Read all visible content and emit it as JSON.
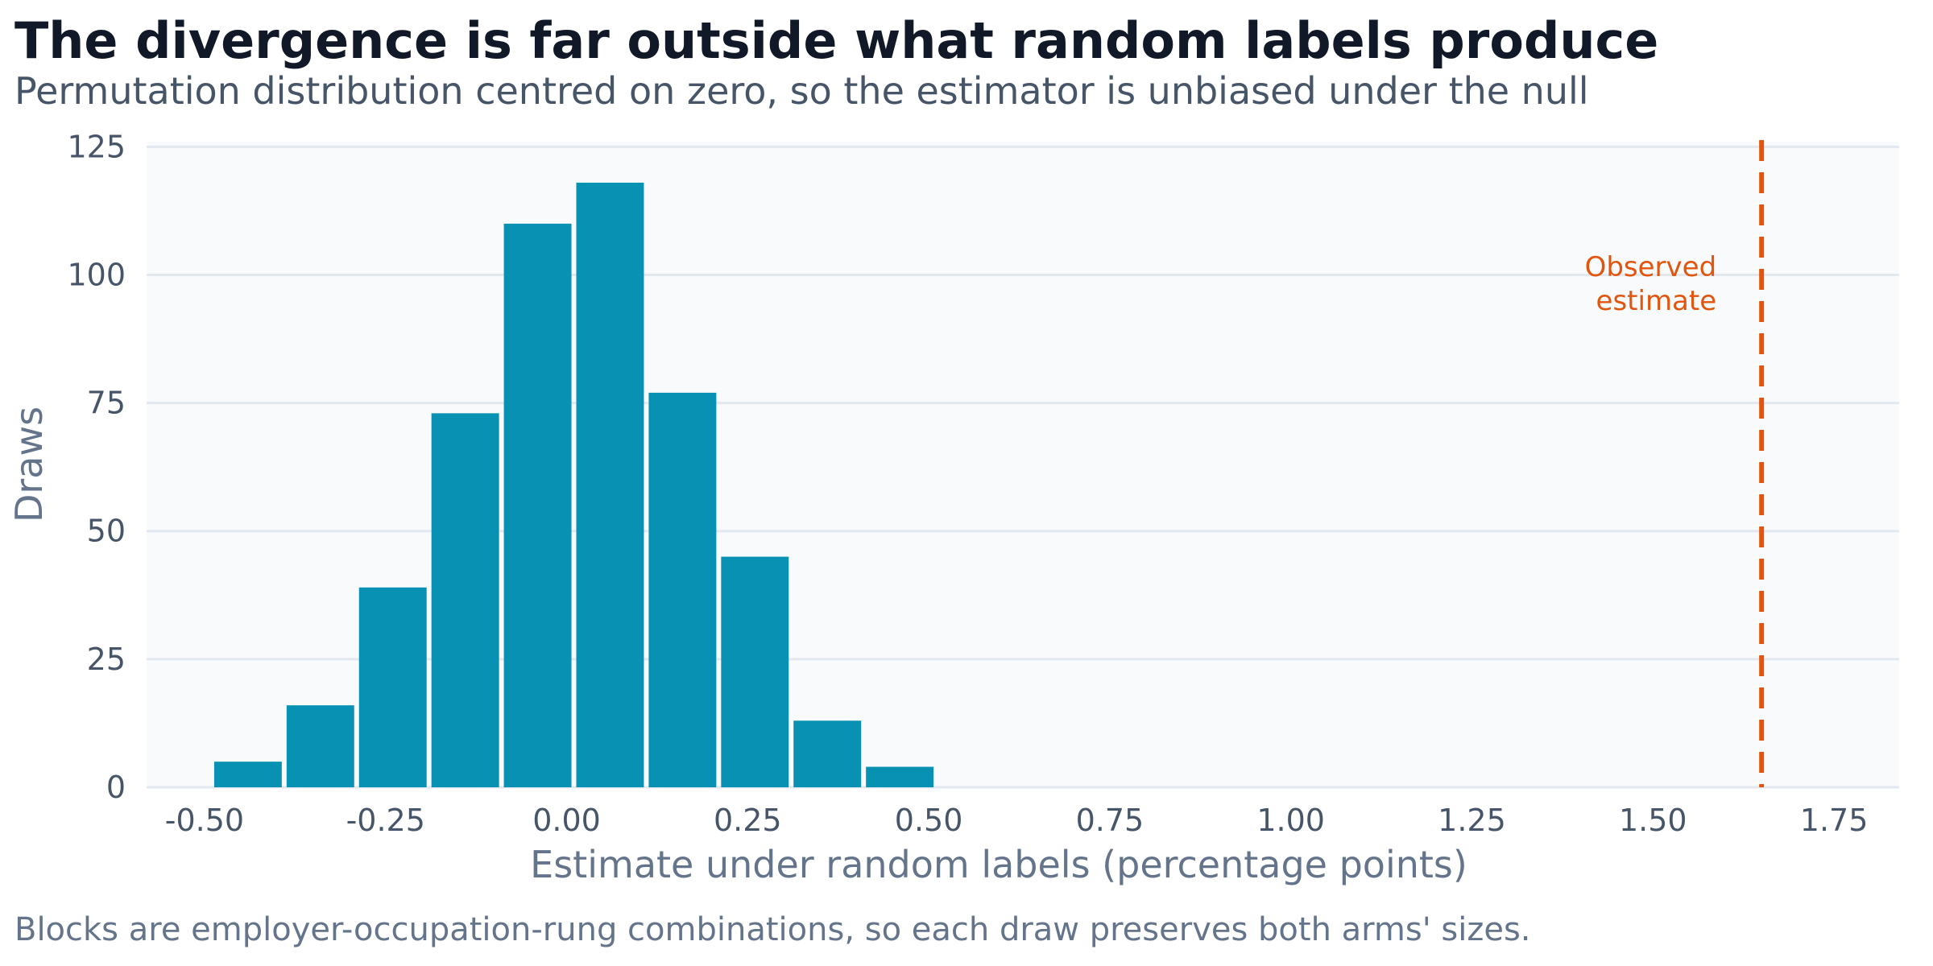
{
  "title": "The divergence is far outside what random labels produce",
  "subtitle": "Permutation distribution centred on zero, so the estimator is unbiased under the null",
  "footnote": "Blocks are employer-occupation-rung combinations, so each draw preserves both arms' sizes.",
  "chart_data": {
    "type": "bar",
    "xlabel": "Estimate under random labels (percentage points)",
    "ylabel": "Draws",
    "xlim": [
      -0.58,
      1.84
    ],
    "ylim": [
      0,
      126
    ],
    "grid": true,
    "bin_width": 0.1,
    "bins": [
      {
        "x0": -0.49,
        "x1": -0.39,
        "count": 5
      },
      {
        "x0": -0.39,
        "x1": -0.29,
        "count": 16
      },
      {
        "x0": -0.29,
        "x1": -0.19,
        "count": 39
      },
      {
        "x0": -0.19,
        "x1": -0.09,
        "count": 73
      },
      {
        "x0": -0.09,
        "x1": 0.01,
        "count": 110
      },
      {
        "x0": 0.01,
        "x1": 0.11,
        "count": 118
      },
      {
        "x0": 0.11,
        "x1": 0.21,
        "count": 77
      },
      {
        "x0": 0.21,
        "x1": 0.31,
        "count": 45
      },
      {
        "x0": 0.31,
        "x1": 0.41,
        "count": 13
      },
      {
        "x0": 0.41,
        "x1": 0.51,
        "count": 4
      }
    ],
    "x_ticks": [
      {
        "value": -0.5,
        "label": "-0.50"
      },
      {
        "value": -0.25,
        "label": "-0.25"
      },
      {
        "value": 0.0,
        "label": "0.00"
      },
      {
        "value": 0.25,
        "label": "0.25"
      },
      {
        "value": 0.5,
        "label": "0.50"
      },
      {
        "value": 0.75,
        "label": "0.75"
      },
      {
        "value": 1.0,
        "label": "1.00"
      },
      {
        "value": 1.25,
        "label": "1.25"
      },
      {
        "value": 1.5,
        "label": "1.50"
      },
      {
        "value": 1.75,
        "label": "1.75"
      }
    ],
    "y_ticks": [
      {
        "value": 0,
        "label": "0"
      },
      {
        "value": 25,
        "label": "25"
      },
      {
        "value": 50,
        "label": "50"
      },
      {
        "value": 75,
        "label": "75"
      },
      {
        "value": 100,
        "label": "100"
      },
      {
        "value": 125,
        "label": "125"
      }
    ],
    "observed": {
      "value": 1.65,
      "label_lines": [
        "Observed",
        "estimate"
      ]
    },
    "colors": {
      "bar": "#0891b2",
      "observed": "#e0560f",
      "plot_bg": "#f8fafc",
      "grid": "#e2e8f0"
    }
  }
}
